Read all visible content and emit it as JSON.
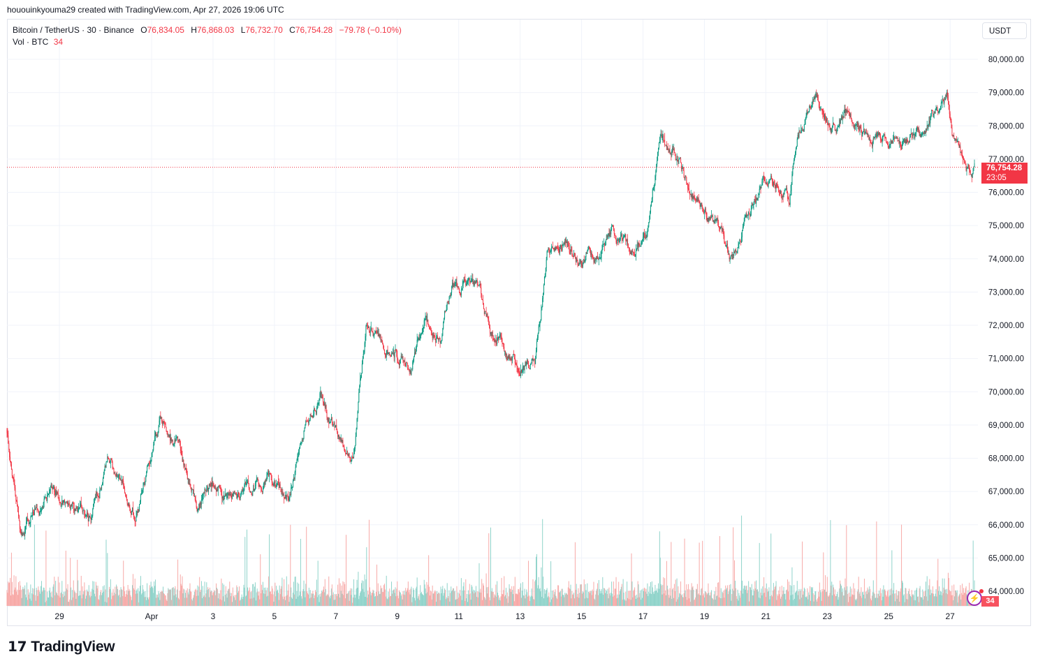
{
  "credit": "hououinkyouma29 created with TradingView.com, Apr 27, 2026 19:06 UTC",
  "legend": {
    "symbol": "Bitcoin / TetherUS · 30 · Binance",
    "o_label": "O",
    "o": "76,834.05",
    "h_label": "H",
    "h": "76,868.03",
    "l_label": "L",
    "l": "76,732.70",
    "c_label": "C",
    "c": "76,754.28",
    "change": "−79.78 (−0.10%)",
    "vol_label": "Vol · BTC",
    "vol": "34"
  },
  "currency_button": "USDT",
  "last_price": {
    "price": "76,754.28",
    "countdown": "23:05"
  },
  "volume_label": "34",
  "logo_text": "TradingView",
  "colors": {
    "up": "#089981",
    "down": "#f23645",
    "vol_up": "#8fd3ca",
    "vol_down": "#f7a9a7",
    "grid": "#f0f3fa"
  },
  "chart_data": {
    "type": "candlestick",
    "interval": "30m",
    "ylim": [
      63600,
      80600
    ],
    "yticks": [
      "80,000.00",
      "79,000.00",
      "78,000.00",
      "77,000.00",
      "76,000.00",
      "75,000.00",
      "74,000.00",
      "73,000.00",
      "72,000.00",
      "71,000.00",
      "70,000.00",
      "69,000.00",
      "68,000.00",
      "67,000.00",
      "66,000.00",
      "65,000.00",
      "64,000.00"
    ],
    "ytick_values": [
      80000,
      79000,
      78000,
      77000,
      76000,
      75000,
      74000,
      73000,
      72000,
      71000,
      70000,
      69000,
      68000,
      67000,
      66000,
      65000,
      64000
    ],
    "xticks": [
      "29",
      "Apr",
      "3",
      "5",
      "7",
      "9",
      "11",
      "13",
      "15",
      "17",
      "19",
      "21",
      "23",
      "25",
      "27"
    ],
    "xtick_dates": [
      "2026-03-29",
      "2026-04-01",
      "2026-04-03",
      "2026-04-05",
      "2026-04-07",
      "2026-04-09",
      "2026-04-11",
      "2026-04-13",
      "2026-04-15",
      "2026-04-17",
      "2026-04-19",
      "2026-04-21",
      "2026-04-23",
      "2026-04-25",
      "2026-04-27"
    ],
    "x_range": [
      "2026-03-27T07:00",
      "2026-04-27T19:00"
    ],
    "grid": true,
    "approx_price_path": [
      [
        "2026-03-27T07:00",
        68870
      ],
      [
        "2026-03-27T18:00",
        65830
      ],
      [
        "2026-03-28T17:00",
        67000
      ],
      [
        "2026-03-30T00:00",
        66250
      ],
      [
        "2026-03-30T14:00",
        67930
      ],
      [
        "2026-03-31T12:00",
        66350
      ],
      [
        "2026-04-01T07:00",
        68980
      ],
      [
        "2026-04-02T00:00",
        68140
      ],
      [
        "2026-04-02T12:00",
        66250
      ],
      [
        "2026-04-02T22:00",
        67100
      ],
      [
        "2026-04-03T19:00",
        66880
      ],
      [
        "2026-04-04T19:00",
        67400
      ],
      [
        "2026-04-05T12:00",
        66770
      ],
      [
        "2026-04-06T00:00",
        68980
      ],
      [
        "2026-04-06T12:00",
        69820
      ],
      [
        "2026-04-07T02:00",
        68560
      ],
      [
        "2026-04-07T14:00",
        68140
      ],
      [
        "2026-04-08T00:00",
        71920
      ],
      [
        "2026-04-08T19:00",
        71290
      ],
      [
        "2026-04-09T12:00",
        70870
      ],
      [
        "2026-04-09T22:00",
        72340
      ],
      [
        "2026-04-10T10:00",
        71710
      ],
      [
        "2026-04-10T19:00",
        73180
      ],
      [
        "2026-04-11T17:00",
        73180
      ],
      [
        "2026-04-12T02:00",
        71920
      ],
      [
        "2026-04-12T22:00",
        70870
      ],
      [
        "2026-04-13T12:00",
        70870
      ],
      [
        "2026-04-13T22:00",
        74220
      ],
      [
        "2026-04-14T14:00",
        74650
      ],
      [
        "2026-04-14T22:00",
        74020
      ],
      [
        "2026-04-15T14:00",
        74020
      ],
      [
        "2026-04-16T00:00",
        74860
      ],
      [
        "2026-04-16T14:00",
        74220
      ],
      [
        "2026-04-17T05:00",
        74860
      ],
      [
        "2026-04-17T14:00",
        77590
      ],
      [
        "2026-04-18T05:00",
        77060
      ],
      [
        "2026-04-18T12:00",
        76110
      ],
      [
        "2026-04-19T05:00",
        75270
      ],
      [
        "2026-04-19T22:00",
        74020
      ],
      [
        "2026-04-20T19:00",
        76110
      ],
      [
        "2026-04-21T10:00",
        76430
      ],
      [
        "2026-04-21T19:00",
        75490
      ],
      [
        "2026-04-22T00:00",
        77590
      ],
      [
        "2026-04-22T14:00",
        79050
      ],
      [
        "2026-04-23T07:00",
        77800
      ],
      [
        "2026-04-23T14:00",
        78430
      ],
      [
        "2026-04-24T07:00",
        77690
      ],
      [
        "2026-04-24T22:00",
        77480
      ],
      [
        "2026-04-25T14:00",
        77590
      ],
      [
        "2026-04-26T05:00",
        78010
      ],
      [
        "2026-04-26T22:00",
        78840
      ],
      [
        "2026-04-27T02:00",
        77900
      ],
      [
        "2026-04-27T14:00",
        76700
      ],
      [
        "2026-04-27T19:00",
        76754.28
      ]
    ],
    "last": 76754.28
  }
}
